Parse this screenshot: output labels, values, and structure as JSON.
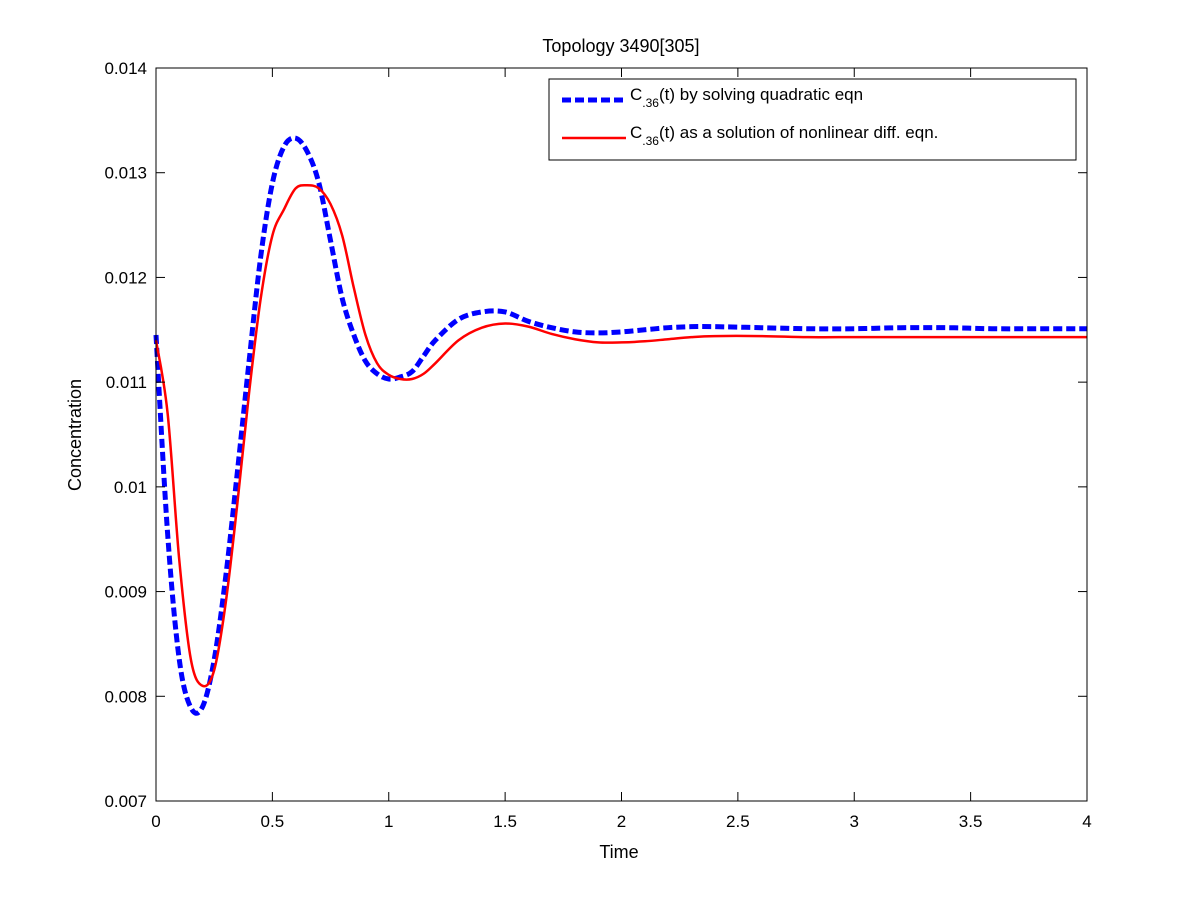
{
  "chart_data": {
    "type": "line",
    "title": "Topology 3490[305]",
    "xlabel": "Time",
    "ylabel": "Concentration",
    "xlim": [
      0,
      4
    ],
    "ylim": [
      0.007,
      0.014
    ],
    "xticks": [
      0,
      0.5,
      1,
      1.5,
      2,
      2.5,
      3,
      3.5,
      4
    ],
    "xtick_labels": [
      "0",
      "0.5",
      "1",
      "1.5",
      "2",
      "2.5",
      "3",
      "3.5",
      "4"
    ],
    "yticks": [
      0.007,
      0.008,
      0.009,
      0.01,
      0.011,
      0.012,
      0.013,
      0.014
    ],
    "ytick_labels": [
      "0.007",
      "0.008",
      "0.009",
      "0.01",
      "0.011",
      "0.012",
      "0.013",
      "0.014"
    ],
    "grid": false,
    "legend_position": "top-right",
    "series": [
      {
        "name": "C.36(t) by solving quadratic eqn",
        "legend_main": "C",
        "legend_sub": ".36",
        "legend_rest": "(t) by solving quadratic eqn",
        "color": "#0000ff",
        "style": "dashed",
        "x": [
          0,
          0.05,
          0.1,
          0.15,
          0.2,
          0.25,
          0.3,
          0.35,
          0.4,
          0.45,
          0.5,
          0.55,
          0.6,
          0.65,
          0.7,
          0.75,
          0.8,
          0.85,
          0.9,
          0.95,
          1.0,
          1.05,
          1.1,
          1.15,
          1.2,
          1.3,
          1.4,
          1.5,
          1.6,
          1.7,
          1.8,
          1.9,
          2.0,
          2.1,
          2.2,
          2.3,
          2.4,
          2.6,
          2.8,
          3.0,
          3.2,
          3.4,
          3.6,
          3.8,
          4.0
        ],
        "y": [
          0.01145,
          0.00955,
          0.00835,
          0.00789,
          0.0079,
          0.00835,
          0.00915,
          0.01015,
          0.0112,
          0.0122,
          0.0129,
          0.01325,
          0.01333,
          0.0132,
          0.0129,
          0.01235,
          0.0118,
          0.01145,
          0.0112,
          0.01108,
          0.01103,
          0.01105,
          0.0111,
          0.01125,
          0.0114,
          0.0116,
          0.01167,
          0.01167,
          0.01158,
          0.01152,
          0.01148,
          0.01147,
          0.01148,
          0.0115,
          0.01152,
          0.01153,
          0.01153,
          0.01152,
          0.01151,
          0.01151,
          0.01152,
          0.01152,
          0.01151,
          0.01151,
          0.01151
        ]
      },
      {
        "name": "C.36(t) as a solution of nonlinear diff. eqn.",
        "legend_main": "C",
        "legend_sub": ".36",
        "legend_rest": "(t) as a solution of nonlinear diff. eqn.",
        "color": "#ff0000",
        "style": "solid",
        "x": [
          0,
          0.05,
          0.1,
          0.15,
          0.2,
          0.25,
          0.3,
          0.35,
          0.4,
          0.45,
          0.5,
          0.55,
          0.6,
          0.65,
          0.7,
          0.75,
          0.8,
          0.85,
          0.9,
          0.95,
          1.0,
          1.05,
          1.1,
          1.15,
          1.2,
          1.3,
          1.4,
          1.5,
          1.6,
          1.7,
          1.8,
          1.9,
          2.0,
          2.1,
          2.2,
          2.3,
          2.4,
          2.6,
          2.8,
          3.0,
          3.2,
          3.4,
          3.6,
          3.8,
          4.0
        ],
        "y": [
          0.0114,
          0.0107,
          0.0093,
          0.00835,
          0.0081,
          0.00825,
          0.0089,
          0.00985,
          0.0109,
          0.0118,
          0.0124,
          0.01265,
          0.01285,
          0.01288,
          0.01285,
          0.0127,
          0.0124,
          0.0119,
          0.01145,
          0.01118,
          0.01107,
          0.01103,
          0.01103,
          0.01108,
          0.01118,
          0.0114,
          0.01152,
          0.01156,
          0.01153,
          0.01146,
          0.01141,
          0.01138,
          0.01138,
          0.01139,
          0.01141,
          0.01143,
          0.01144,
          0.01144,
          0.01143,
          0.01143,
          0.01143,
          0.01143,
          0.01143,
          0.01143,
          0.01143
        ]
      }
    ]
  }
}
